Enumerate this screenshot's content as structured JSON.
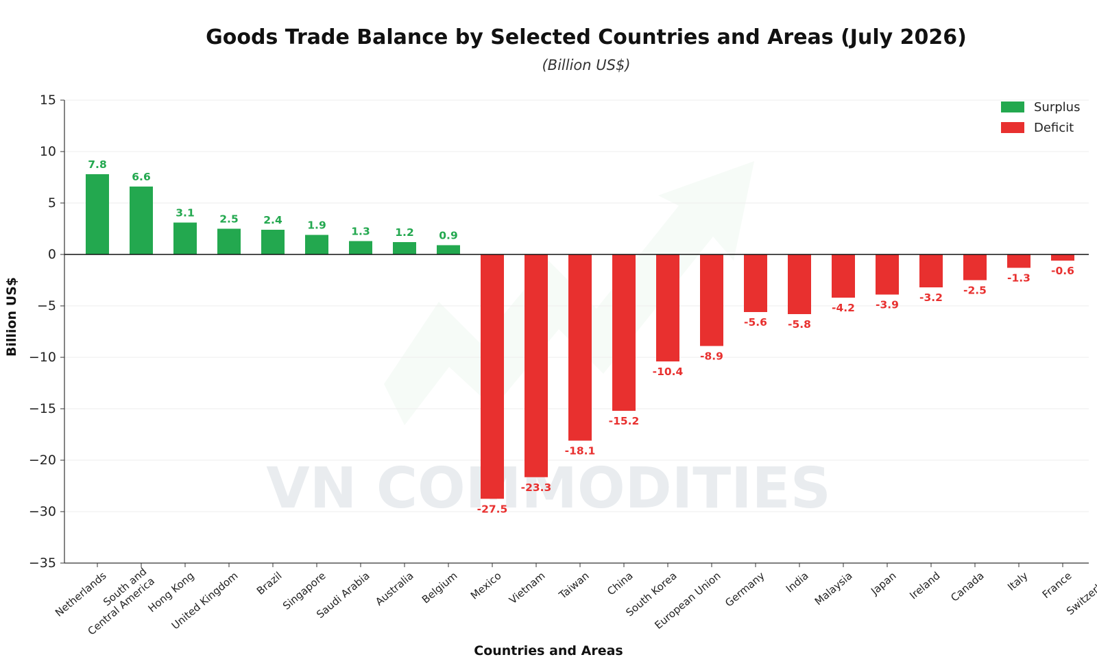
{
  "chart_data": {
    "type": "bar",
    "title": "Goods Trade Balance by Selected Countries and Areas (July 2026)",
    "subtitle": "(Billion US$)",
    "xlabel": "Countries and Areas",
    "ylabel": "Billion US$",
    "ylim": [
      -35,
      15
    ],
    "yticks": [
      15,
      10,
      5,
      0,
      -5,
      -10,
      -15,
      -20,
      -30,
      -35
    ],
    "ytick_labels": [
      "15",
      "10",
      "5",
      "0",
      "−5",
      "−10",
      "−15",
      "−20",
      "−30",
      "−35"
    ],
    "grid": true,
    "legend_position": "top-right",
    "legend": [
      {
        "name": "Surplus",
        "color": "#23a84f"
      },
      {
        "name": "Deficit",
        "color": "#e8302f"
      }
    ],
    "watermark": "VN COMMODITIES",
    "categories": [
      "Netherlands",
      "South and\nCentral America",
      "Hong Kong",
      "United Kingdom",
      "Brazil",
      "Singapore",
      "Saudi Arabia",
      "Australia",
      "Belgium",
      "Mexico",
      "Vietnam",
      "Taiwan",
      "China",
      "South Korea",
      "European Union",
      "Germany",
      "India",
      "Malaysia",
      "Japan",
      "Ireland",
      "Canada",
      "Italy",
      "France",
      "Switzerland"
    ],
    "values": [
      7.8,
      6.6,
      3.1,
      2.5,
      2.4,
      1.9,
      1.3,
      1.2,
      0.9,
      -27.5,
      -23.3,
      -18.1,
      -15.2,
      -10.4,
      -8.9,
      -5.6,
      -5.8,
      -4.2,
      -3.9,
      -3.2,
      -2.5,
      -1.3,
      -0.6,
      null
    ],
    "data_labels": [
      "7.8",
      "6.6",
      "3.1",
      "2.5",
      "2.4",
      "1.9",
      "1.3",
      "1.2",
      "0.9",
      "-27.5",
      "-23.3",
      "-18.1",
      "-15.2",
      "-10.4",
      "-8.9",
      "-5.6",
      "-5.8",
      "-4.2",
      "-3.9",
      "-3.2",
      "-2.5",
      "-1.3",
      "-0.6",
      ""
    ],
    "colors": {
      "surplus": "#23a84f",
      "deficit": "#e8302f",
      "axis": "#333333",
      "grid": "#eeeeee"
    }
  }
}
